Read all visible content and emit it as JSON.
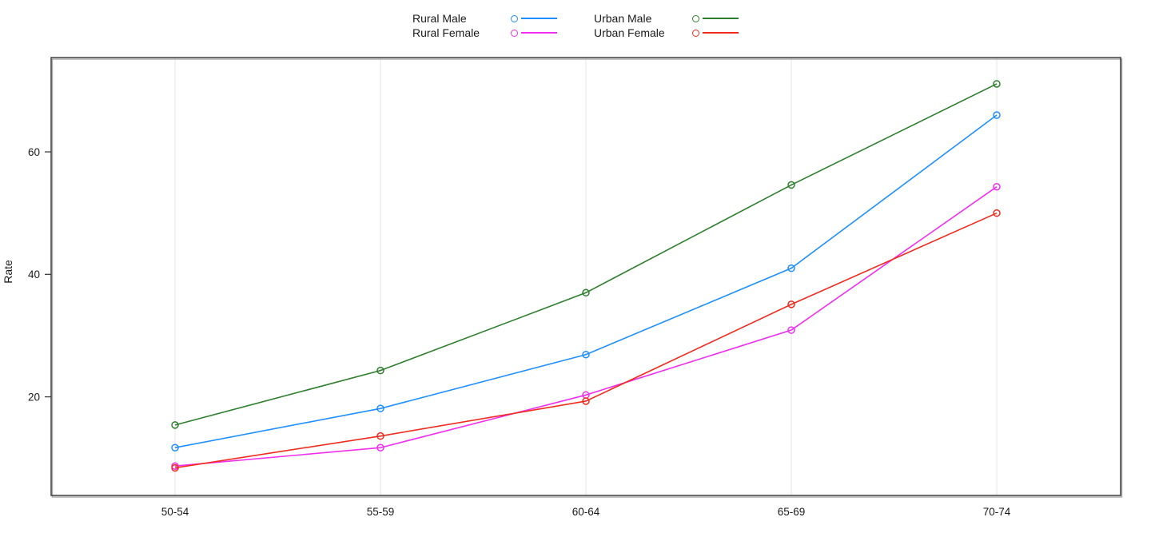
{
  "chart_data": {
    "type": "line",
    "title": "",
    "xlabel": "",
    "ylabel": "Rate",
    "categories": [
      "50-54",
      "55-59",
      "60-64",
      "65-69",
      "70-74"
    ],
    "series": [
      {
        "name": "Rural Male",
        "color": "#1E8FFF",
        "values": [
          11.7,
          18.1,
          26.9,
          41.0,
          66.0
        ]
      },
      {
        "name": "Rural Female",
        "color": "#F02EF0",
        "values": [
          8.7,
          11.7,
          20.3,
          30.9,
          54.3
        ]
      },
      {
        "name": "Urban Male",
        "color": "#2D7F2D",
        "values": [
          15.4,
          24.3,
          37.0,
          54.6,
          71.1
        ]
      },
      {
        "name": "Urban Female",
        "color": "#EF2B1D",
        "values": [
          8.4,
          13.6,
          19.3,
          35.1,
          50.0
        ]
      }
    ],
    "yticks": [
      20,
      40,
      60
    ],
    "ylim": [
      3.9,
      75.4
    ],
    "grid": "vertical-only",
    "gridline_color": "#E9E9E9",
    "frame_color": "#3D3D3D",
    "frame_shadow_color": "#A9A9A9",
    "marker": "open-circle",
    "legend_position": "top-center",
    "legend_columns": 2
  }
}
